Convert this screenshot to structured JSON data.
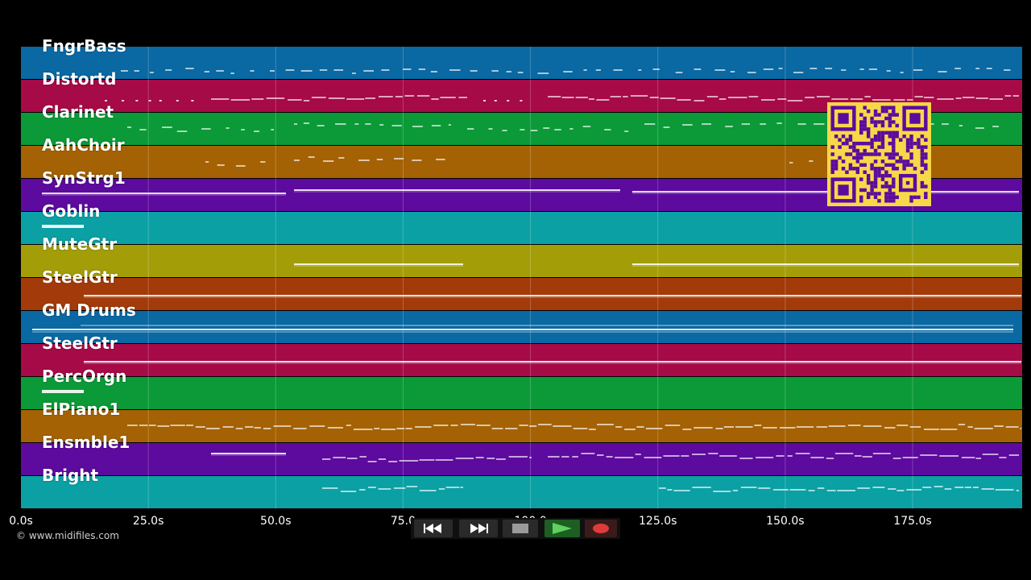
{
  "timeline": {
    "track_colors": [
      "#0a68a2",
      "#a60a47",
      "#0b9a37",
      "#a46205",
      "#5d0a9e",
      "#0aa0a4",
      "#a39e08",
      "#a33a0a",
      "#0a68a2",
      "#a60a47",
      "#0b9a37",
      "#a46205",
      "#5d0a9e",
      "#0aa0a4"
    ],
    "tracks": [
      {
        "label": "FngrBass"
      },
      {
        "label": "Distortd"
      },
      {
        "label": "Clarinet"
      },
      {
        "label": "AahChoir"
      },
      {
        "label": "SynStrg1"
      },
      {
        "label": "Goblin"
      },
      {
        "label": "MuteGtr"
      },
      {
        "label": "SteelGtr"
      },
      {
        "label": "GM Drums"
      },
      {
        "label": "SteelGtr"
      },
      {
        "label": "PercOrgn"
      },
      {
        "label": "ElPiano1"
      },
      {
        "label": "Ensmble1"
      },
      {
        "label": "Bright"
      }
    ],
    "time_ticks": [
      {
        "seconds": 0,
        "label": "0.0s"
      },
      {
        "seconds": 25,
        "label": "25.0s"
      },
      {
        "seconds": 50,
        "label": "50.0s"
      },
      {
        "seconds": 75,
        "label": "75.0"
      },
      {
        "seconds": 100,
        "label": "100.0"
      },
      {
        "seconds": 125,
        "label": "125.0s"
      },
      {
        "seconds": 150,
        "label": "150.0s"
      },
      {
        "seconds": 175,
        "label": "175.0s"
      }
    ],
    "duration_seconds": 196.5
  },
  "footer": {
    "copyright": "© www.midifiles.com"
  },
  "transport": {
    "rewind_icon": "rewind-icon",
    "fast_forward_icon": "fast-forward-icon",
    "stop_icon": "stop-icon",
    "play_icon": "play-icon",
    "record_icon": "record-icon"
  },
  "qr_code": {
    "icon": "qr-code-icon",
    "color": "#f6d848"
  }
}
